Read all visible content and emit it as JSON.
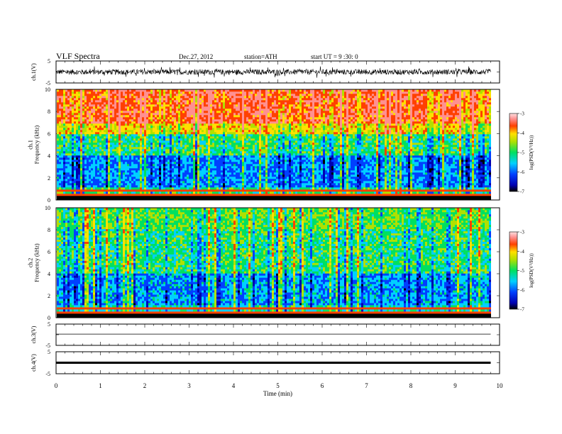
{
  "header": {
    "title": "VLF Spectra",
    "date": "Dec.27, 2012",
    "station": "station=ATH",
    "start": "start UT = 9 :30: 0"
  },
  "chart_data": [
    {
      "type": "line",
      "panel": "ch1-waveform",
      "ylabel": "ch.1(V)",
      "ylim": [
        -5,
        5
      ],
      "yticks": [
        "5",
        "-5"
      ],
      "xlim": [
        0,
        10
      ],
      "data_end_min": 9.8,
      "description": "noisy waveform, amplitude about +/-2 V"
    },
    {
      "type": "heatmap",
      "panel": "ch1-spectrogram",
      "ylabel": "ch.1\nFrequency (kHz)",
      "ylim": [
        0,
        10
      ],
      "yticks": [
        "0",
        "2",
        "4",
        "6",
        "8",
        "10"
      ],
      "xlim": [
        0,
        10
      ],
      "colorbar": {
        "label": "log(PSD(V²/Hz))",
        "range": [
          -7,
          -3
        ],
        "ticks": [
          "-3",
          "-4",
          "-5",
          "-6",
          "-7"
        ]
      }
    },
    {
      "type": "heatmap",
      "panel": "ch2-spectrogram",
      "ylabel": "ch.2\nFrequency (kHz)",
      "ylim": [
        0,
        10
      ],
      "yticks": [
        "0",
        "2",
        "4",
        "6",
        "8",
        "10"
      ],
      "xlim": [
        0,
        10
      ],
      "colorbar": {
        "label": "log(PSD(V²/Hz))",
        "range": [
          -7,
          -3
        ],
        "ticks": [
          "-3",
          "-4",
          "-5",
          "-6",
          "-7"
        ]
      }
    },
    {
      "type": "line",
      "panel": "ch3-waveform",
      "ylabel": "ch.3(V)",
      "ylim": [
        -5,
        5
      ],
      "yticks": [
        "5",
        "-5"
      ],
      "xlim": [
        0,
        10
      ],
      "description": "flat line near 0 V"
    },
    {
      "type": "line",
      "panel": "ch4-waveform",
      "ylabel": "ch.4(V)",
      "ylim": [
        -5,
        5
      ],
      "yticks": [
        "5",
        "-5"
      ],
      "xlim": [
        0,
        10
      ],
      "description": "thick dense band near 0 V"
    }
  ],
  "xaxis": {
    "label": "Time (min)",
    "ticks": [
      "0",
      "1",
      "2",
      "3",
      "4",
      "5",
      "6",
      "7",
      "8",
      "9",
      "10"
    ]
  }
}
